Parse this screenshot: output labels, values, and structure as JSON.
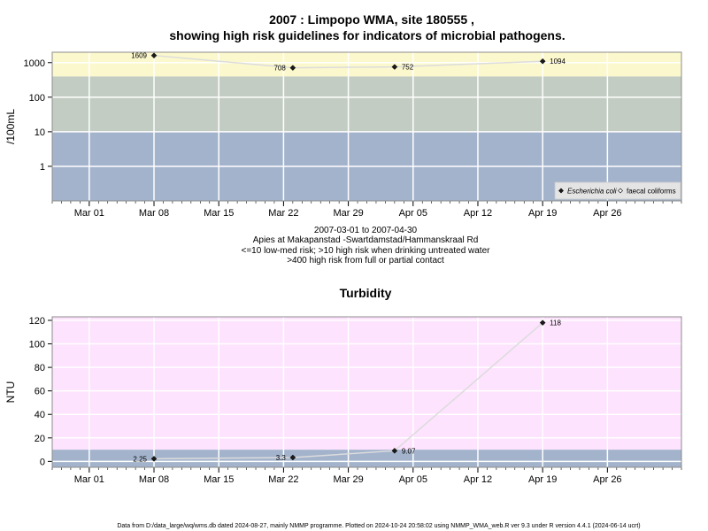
{
  "title": {
    "line1": "2007 : Limpopo WMA, site 180555 ,",
    "line2": "showing high risk guidelines for indicators of microbial pathogens."
  },
  "subtitle_lines": [
    "2007-03-01 to 2007-04-30",
    "Apies at Makapanstad -Swartdamstad/Hammanskraal Rd",
    "<=10 low-med risk; >10 high risk when drinking untreated water",
    ">400 high risk from full or partial contact"
  ],
  "footer": "Data from D:/data_large/wq/wms.db dated 2024-08-27, mainly NMMP programme. Plotted on 2024-10-24 20:58:02 using NMMP_WMA_web.R ver 9.3 under R version 4.4.1 (2024-06-14 ucrt)",
  "colors": {
    "risk_low": "#a3b3cc",
    "risk_mid": "#c2ccc2",
    "risk_high": "#fcf8cd",
    "turbidity_bg": "#fde3fd",
    "line": "#dcdcdc",
    "point": "#1a1a1a"
  },
  "chart_data": [
    {
      "type": "line",
      "title": "",
      "ylabel": "/100mL",
      "xlabel": "",
      "x_axis": {
        "type": "date",
        "range": [
          "2007-02-25",
          "2007-05-04"
        ],
        "tick_dates": [
          "2007-03-01",
          "2007-03-08",
          "2007-03-15",
          "2007-03-22",
          "2007-03-29",
          "2007-04-05",
          "2007-04-12",
          "2007-04-19",
          "2007-04-26"
        ],
        "tick_labels": [
          "Mar 01",
          "Mar 08",
          "Mar 15",
          "Mar 22",
          "Mar 29",
          "Apr 05",
          "Apr 12",
          "Apr 19",
          "Apr 26"
        ]
      },
      "y_axis": {
        "scale": "log",
        "range": [
          0.1,
          2000
        ],
        "ticks": [
          1,
          10,
          100,
          1000
        ],
        "tick_labels": [
          "1",
          "10",
          "100",
          "1000"
        ]
      },
      "bands": [
        {
          "from": 0.1,
          "to": 10,
          "color": "#a3b3cc"
        },
        {
          "from": 10,
          "to": 400,
          "color": "#c2ccc2"
        },
        {
          "from": 400,
          "to": 2000,
          "color": "#fcf8cd"
        }
      ],
      "legend": {
        "position": "bottom-right",
        "entries": [
          {
            "label": "Escherichia coli",
            "marker": "filled-diamond"
          },
          {
            "label": "faecal coliforms",
            "marker": "open-diamond"
          }
        ]
      },
      "series": [
        {
          "name": "Escherichia coli",
          "points": [
            {
              "date": "2007-03-08",
              "value": 1609,
              "label": "1609",
              "label_side": "left"
            },
            {
              "date": "2007-03-23",
              "value": 708,
              "label": "708",
              "label_side": "left"
            },
            {
              "date": "2007-04-03",
              "value": 752,
              "label": "752",
              "label_side": "right"
            },
            {
              "date": "2007-04-19",
              "value": 1094,
              "label": "1094",
              "label_side": "right"
            }
          ]
        }
      ],
      "grid": true
    },
    {
      "type": "line",
      "title": "Turbidity",
      "ylabel": "NTU",
      "xlabel": "",
      "x_axis": {
        "type": "date",
        "range": [
          "2007-02-25",
          "2007-05-04"
        ],
        "tick_dates": [
          "2007-03-01",
          "2007-03-08",
          "2007-03-15",
          "2007-03-22",
          "2007-03-29",
          "2007-04-05",
          "2007-04-12",
          "2007-04-19",
          "2007-04-26"
        ],
        "tick_labels": [
          "Mar 01",
          "Mar 08",
          "Mar 15",
          "Mar 22",
          "Mar 29",
          "Apr 05",
          "Apr 12",
          "Apr 19",
          "Apr 26"
        ]
      },
      "y_axis": {
        "scale": "linear",
        "range": [
          -5,
          123
        ],
        "ticks": [
          0,
          20,
          40,
          60,
          80,
          100,
          120
        ],
        "tick_labels": [
          "0",
          "20",
          "40",
          "60",
          "80",
          "100",
          "120"
        ]
      },
      "bands": [
        {
          "from": -5,
          "to": 10,
          "color": "#a3b3cc"
        },
        {
          "from": 10,
          "to": 123,
          "color": "#fde3fd"
        }
      ],
      "series": [
        {
          "name": "",
          "points": [
            {
              "date": "2007-03-08",
              "value": 2.25,
              "label": "2.25",
              "label_side": "left"
            },
            {
              "date": "2007-03-23",
              "value": 3.3,
              "label": "3.3",
              "label_side": "left"
            },
            {
              "date": "2007-04-03",
              "value": 9.07,
              "label": "9.07",
              "label_side": "right"
            },
            {
              "date": "2007-04-19",
              "value": 118,
              "label": "118",
              "label_side": "right"
            }
          ]
        }
      ],
      "grid": true
    }
  ]
}
